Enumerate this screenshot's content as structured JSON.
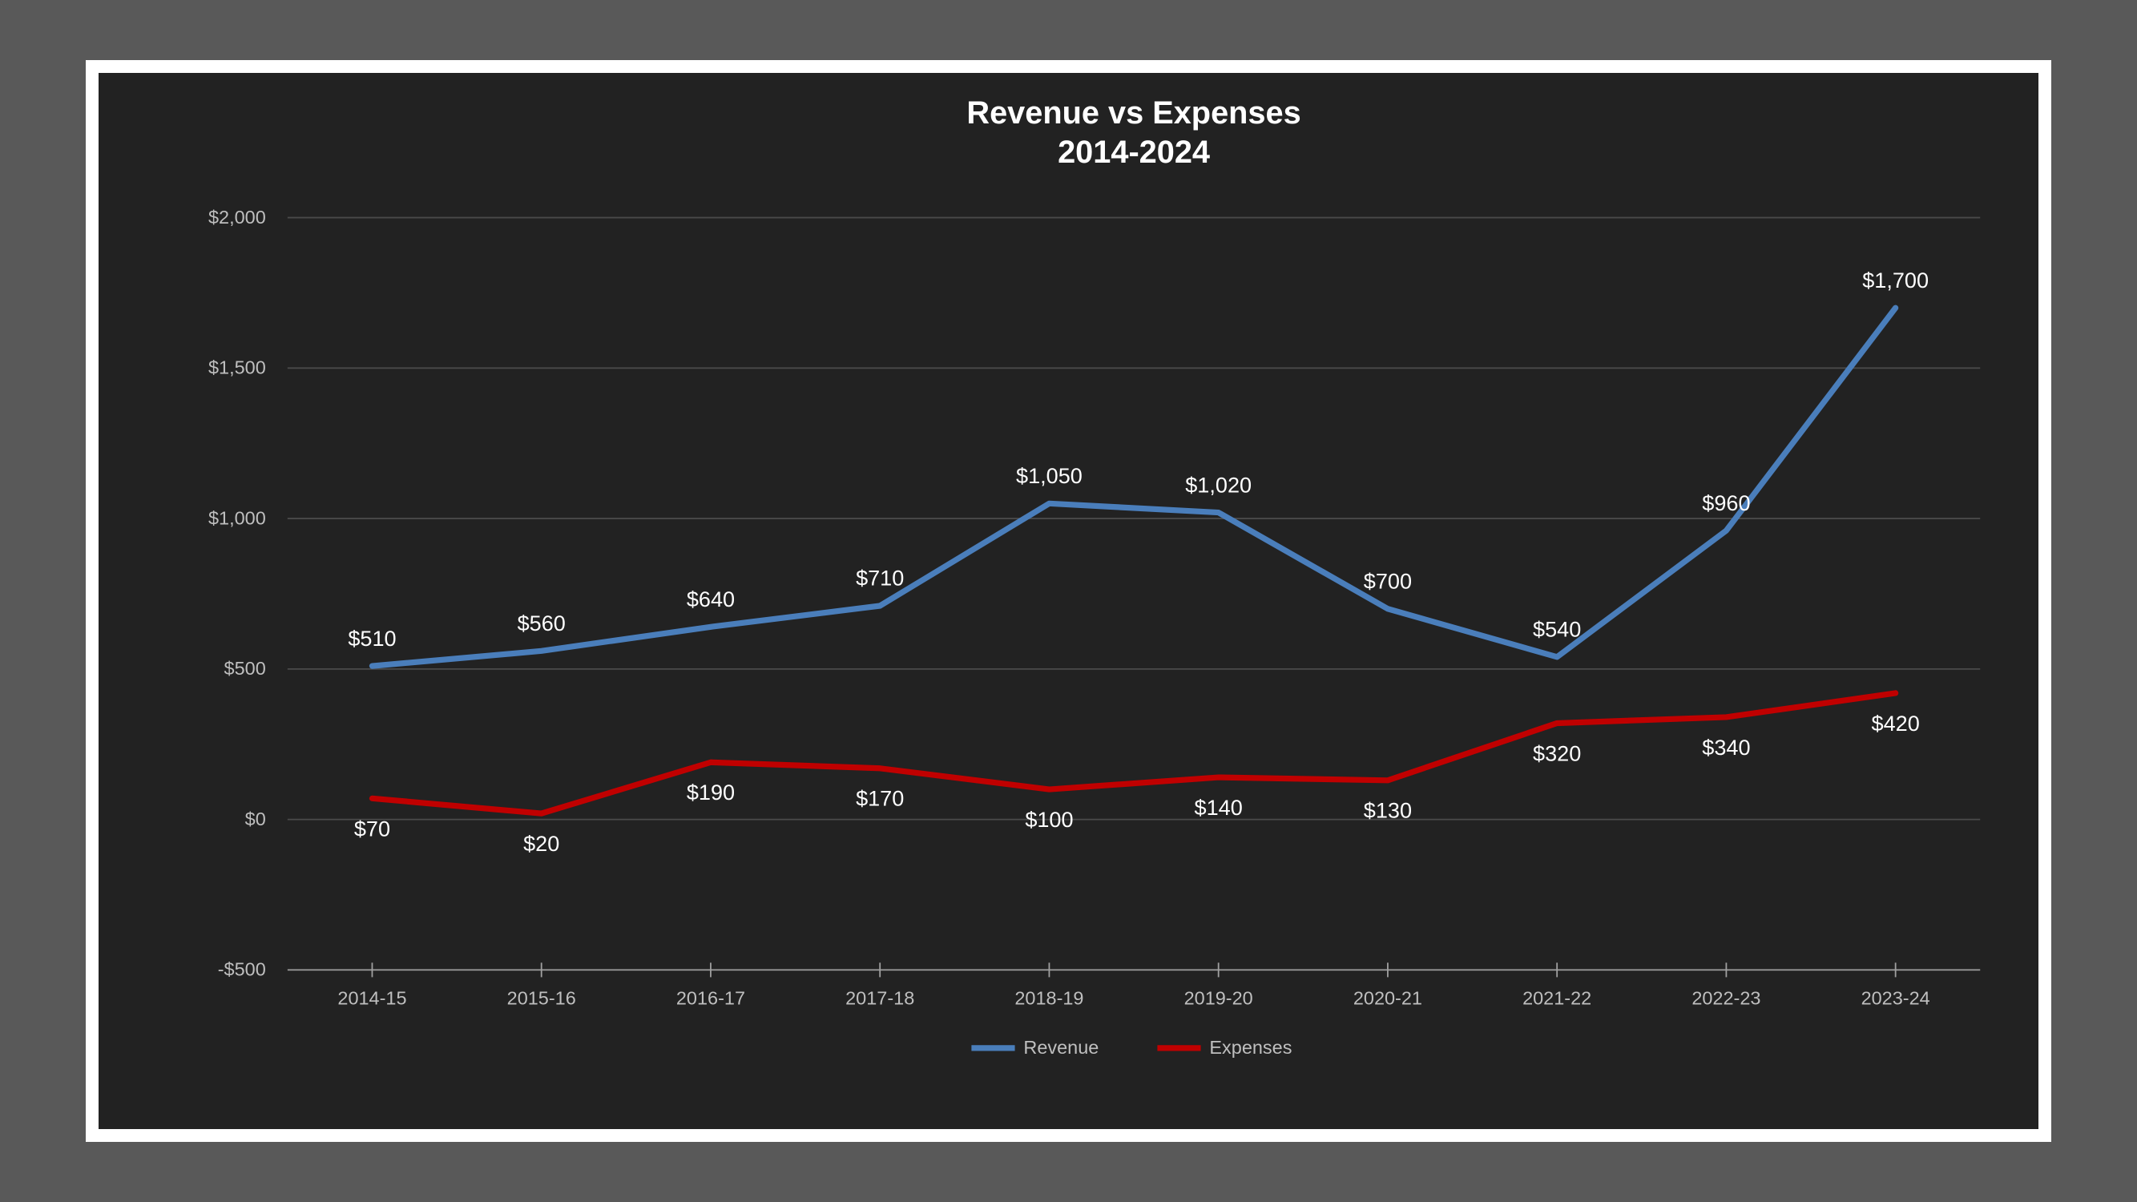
{
  "chart": {
    "type": "line",
    "title_line1": "Revenue vs Expenses",
    "title_line2": "2014-2024",
    "title_fontsize": 22,
    "title_fontweight": "bold",
    "background_color": "#222222",
    "outer_background_color": "#595959",
    "frame_background_color": "#ffffff",
    "plot_background_color": "#222222",
    "grid_color": "#4a4a4a",
    "axis_color": "#a0a0a0",
    "axis_label_color": "#bfbfbf",
    "data_label_color": "#ffffff",
    "axis_label_fontsize": 13,
    "data_label_fontsize": 15,
    "line_width": 4,
    "aspect_w": 2667,
    "aspect_h": 1500,
    "categories": [
      "2014-15",
      "2015-16",
      "2016-17",
      "2017-18",
      "2018-19",
      "2019-20",
      "2020-21",
      "2021-22",
      "2022-23",
      "2023-24"
    ],
    "ylim": [
      -500,
      2000
    ],
    "ytick_step": 500,
    "ytick_labels": [
      "-$500",
      "$0",
      "$500",
      "$1,000",
      "$1,500",
      "$2,000"
    ],
    "series": [
      {
        "name": "Revenue",
        "color": "#4a7ebb",
        "values": [
          510,
          560,
          640,
          710,
          1050,
          1020,
          700,
          540,
          960,
          1700
        ],
        "labels": [
          "$510",
          "$560",
          "$640",
          "$710",
          "$1,050",
          "$1,020",
          "$700",
          "$540",
          "$960",
          "$1,700"
        ],
        "label_side": "above"
      },
      {
        "name": "Expenses",
        "color": "#c00000",
        "values": [
          70,
          20,
          190,
          170,
          100,
          140,
          130,
          320,
          340,
          420
        ],
        "labels": [
          "$70",
          "$20",
          "$190",
          "$170",
          "$100",
          "$140",
          "$130",
          "$320",
          "$340",
          "$420"
        ],
        "label_side": "below"
      }
    ],
    "legend": {
      "position": "bottom",
      "items": [
        {
          "swatch_color": "#4a7ebb",
          "label": "Revenue"
        },
        {
          "swatch_color": "#c00000",
          "label": "Expenses"
        }
      ]
    }
  }
}
